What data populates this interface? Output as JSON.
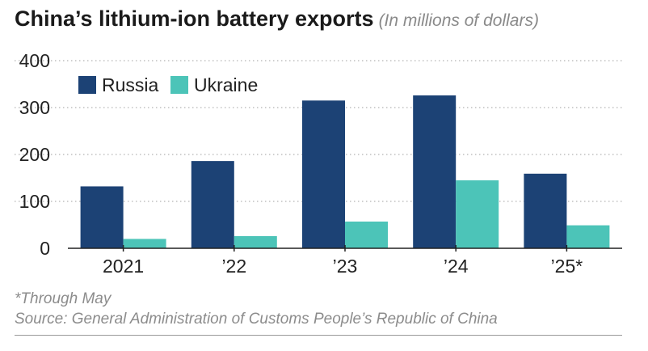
{
  "header": {
    "title": "China’s lithium-ion battery exports",
    "subtitle": "(In millions of dollars)"
  },
  "footnote": "*Through May",
  "source": "Source: General Administration of Customs People’s Republic of China",
  "colors": {
    "russia": "#1c4275",
    "ukraine": "#4cc4b8",
    "grid": "#b5b5b5",
    "axis": "#222222"
  },
  "chart_data": {
    "type": "bar",
    "categories": [
      "2021",
      "’22",
      "’23",
      "’24",
      "’25*"
    ],
    "series": [
      {
        "name": "Russia",
        "values": [
          132,
          186,
          315,
          326,
          159
        ]
      },
      {
        "name": "Ukraine",
        "values": [
          20,
          26,
          57,
          145,
          49
        ]
      }
    ],
    "yticks": [
      0,
      100,
      200,
      300,
      400
    ],
    "ylim": [
      0,
      400
    ],
    "grid": "horizontal-dotted",
    "legend": "top-left"
  }
}
